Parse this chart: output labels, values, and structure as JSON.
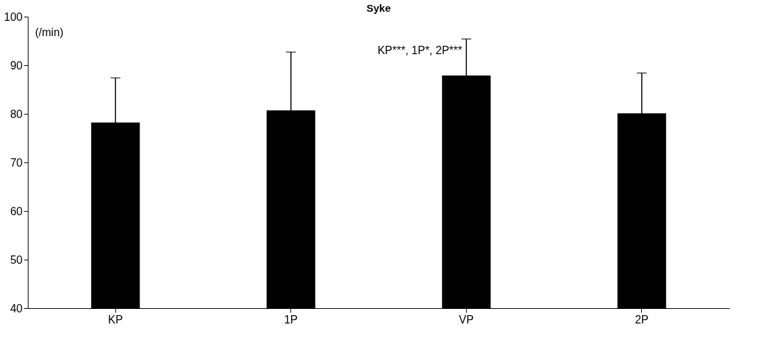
{
  "chart_data": {
    "type": "bar",
    "title": "Syke",
    "ylabel": "(/min)",
    "categories": [
      "KP",
      "1P",
      "VP",
      "2P"
    ],
    "values": [
      78.2,
      80.7,
      87.9,
      80.1
    ],
    "errors": [
      9.2,
      12.0,
      7.5,
      8.3
    ],
    "color": "#000000",
    "ylim": [
      40,
      100
    ],
    "yticks": [
      40,
      50,
      60,
      70,
      80,
      90,
      100
    ],
    "grid": false,
    "annotations": [
      {
        "text": "KP***, 1P*, 2P***",
        "x": "VP",
        "y": 93
      }
    ]
  }
}
